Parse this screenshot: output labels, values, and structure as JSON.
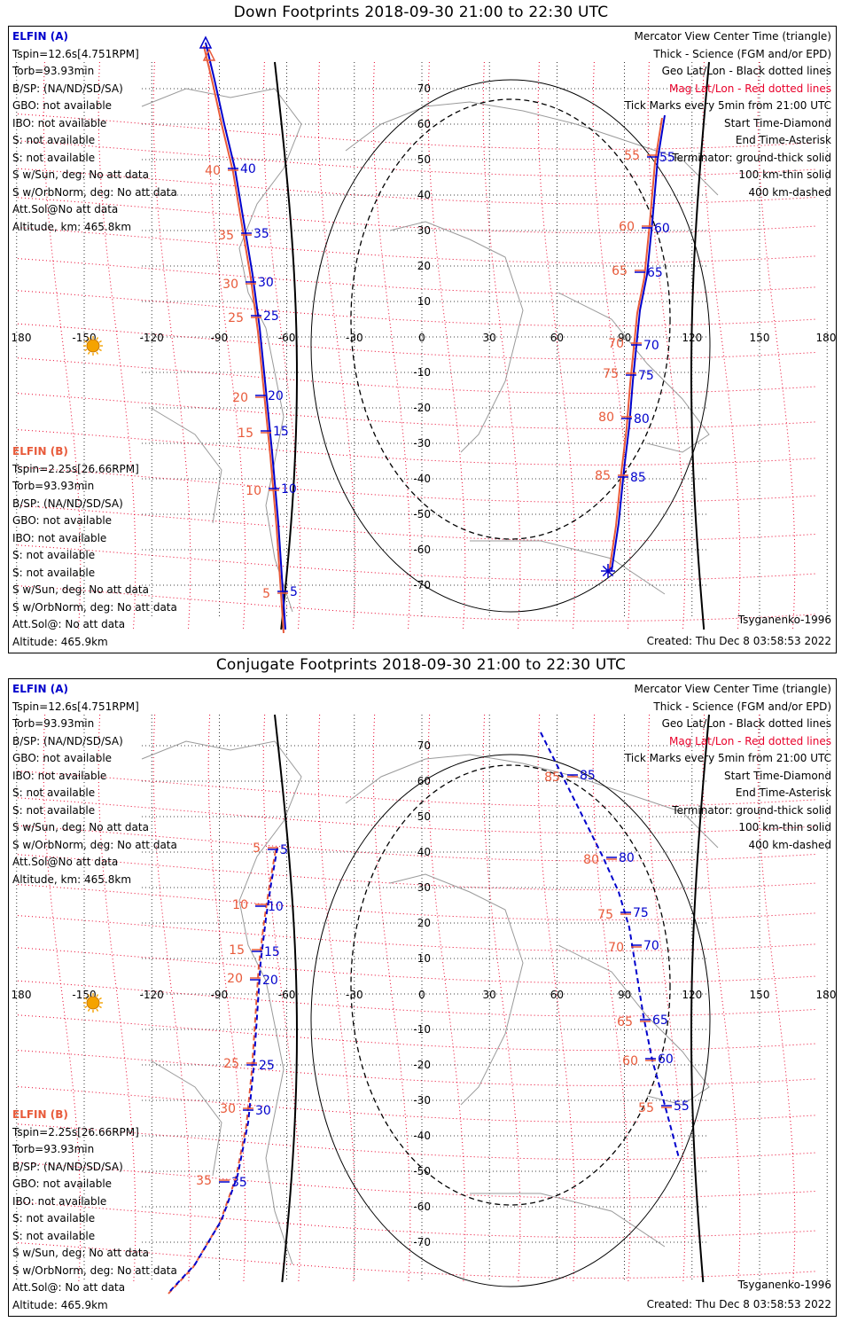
{
  "panels": [
    {
      "title": "Down Footprints 2018-09-30 21:00 to 22:30 UTC",
      "mode": "down",
      "elfin_a": {
        "header": "ELFIN (A)",
        "lines": [
          "Tspin=12.6s[4.751RPM]",
          "Torb=93.93min",
          "B/SP: (NA/ND/SD/SA)",
          "GBO: not available",
          "IBO: not available",
          "S: not available",
          "S: not available",
          "S w/Sun, deg: No att data",
          "S w/OrbNorm, deg: No att data",
          "Att.Sol@No att data",
          "Altitude, km: 465.8km"
        ]
      },
      "elfin_b": {
        "header": "ELFIN (B)",
        "lines": [
          "Tspin=2.25s[26.66RPM]",
          "Torb=93.93min",
          "B/SP: (NA/ND/SD/SA)",
          "GBO: not available",
          "IBO: not available",
          "S: not available",
          "S: not available",
          "S w/Sun, deg: No att data",
          "S w/OrbNorm, deg: No att data",
          "Att.Sol@: No att data",
          "Altitude: 465.9km"
        ]
      },
      "legend": [
        "Mercator View Center Time (triangle)",
        "Thick - Science (FGM and/or EPD)",
        "Geo Lat/Lon - Black dotted lines",
        "Mag Lat/Lon - Red dotted lines",
        "Tick Marks every 5min from 21:00 UTC",
        "Start Time-Diamond",
        "End Time-Asterisk",
        "Terminator: ground-thick solid",
        "100 km-thin solid",
        "400 km-dashed"
      ],
      "model": "Tsyganenko-1996",
      "created": "Created: Thu Dec  8 03:58:53 2022",
      "lon_labels": [
        "180",
        "-150",
        "-120",
        "-90",
        "-60",
        "-30",
        "0",
        "30",
        "60",
        "90",
        "120",
        "150",
        "180"
      ],
      "lat_labels": [
        "70",
        "60",
        "50",
        "40",
        "30",
        "20",
        "10",
        "-10",
        "-20",
        "-30",
        "-40",
        "-50",
        "-60",
        "-70"
      ],
      "track_a_ticks": [
        "40",
        "35",
        "30",
        "25",
        "20",
        "15",
        "10",
        "5"
      ],
      "track_b_ticks": [
        "40",
        "35",
        "30",
        "25",
        "20",
        "15",
        "10",
        "5"
      ],
      "track2_a_ticks": [
        "55",
        "60",
        "65",
        "70",
        "75",
        "80",
        "85"
      ],
      "track2_b_ticks": [
        "55",
        "60",
        "65",
        "70",
        "75",
        "80",
        "85"
      ]
    },
    {
      "title": "Conjugate Footprints 2018-09-30 21:00 to 22:30 UTC",
      "mode": "conj",
      "elfin_a": {
        "header": "ELFIN (A)",
        "lines": [
          "Tspin=12.6s[4.751RPM]",
          "Torb=93.93min",
          "B/SP: (NA/ND/SD/SA)",
          "GBO: not available",
          "IBO: not available",
          "S: not available",
          "S: not available",
          "S w/Sun, deg: No att data",
          "S w/OrbNorm, deg: No att data",
          "Att.Sol@No att data",
          "Altitude, km: 465.8km"
        ]
      },
      "elfin_b": {
        "header": "ELFIN (B)",
        "lines": [
          "Tspin=2.25s[26.66RPM]",
          "Torb=93.93min",
          "B/SP: (NA/ND/SD/SA)",
          "GBO: not available",
          "IBO: not available",
          "S: not available",
          "S: not available",
          "S w/Sun, deg: No att data",
          "S w/OrbNorm, deg: No att data",
          "Att.Sol@: No att data",
          "Altitude: 465.9km"
        ]
      },
      "legend": [
        "Mercator View Center Time (triangle)",
        "Thick - Science (FGM and/or EPD)",
        "Geo Lat/Lon - Black dotted lines",
        "Mag Lat/Lon - Red dotted lines",
        "Tick Marks every 5min from 21:00 UTC",
        "Start Time-Diamond",
        "End Time-Asterisk",
        "Terminator: ground-thick solid",
        "100 km-thin solid",
        "400 km-dashed"
      ],
      "model": "Tsyganenko-1996",
      "created": "Created: Thu Dec  8 03:58:53 2022",
      "lon_labels": [
        "180",
        "-150",
        "-120",
        "-90",
        "-60",
        "-30",
        "0",
        "30",
        "60",
        "90",
        "120",
        "150",
        "180"
      ],
      "lat_labels": [
        "70",
        "60",
        "50",
        "40",
        "30",
        "20",
        "10",
        "-10",
        "-20",
        "-30",
        "-40",
        "-50",
        "-60",
        "-70"
      ],
      "track_a_ticks": [
        "5",
        "10",
        "15",
        "20",
        "25",
        "30",
        "35"
      ],
      "track_b_ticks": [
        "5",
        "10",
        "15",
        "20",
        "25",
        "30",
        "35"
      ],
      "track2_a_ticks": [
        "85",
        "80",
        "75",
        "70",
        "65",
        "60",
        "55"
      ],
      "track2_b_ticks": [
        "85",
        "80",
        "75",
        "70",
        "65",
        "60",
        "55"
      ]
    }
  ],
  "colors": {
    "elfin_a": "#0000cc",
    "elfin_b": "#e85a3a",
    "mag_grid": "#e8002a",
    "geo_grid": "#000000",
    "coast": "#9a9a9a",
    "sun": "#f5a300"
  }
}
